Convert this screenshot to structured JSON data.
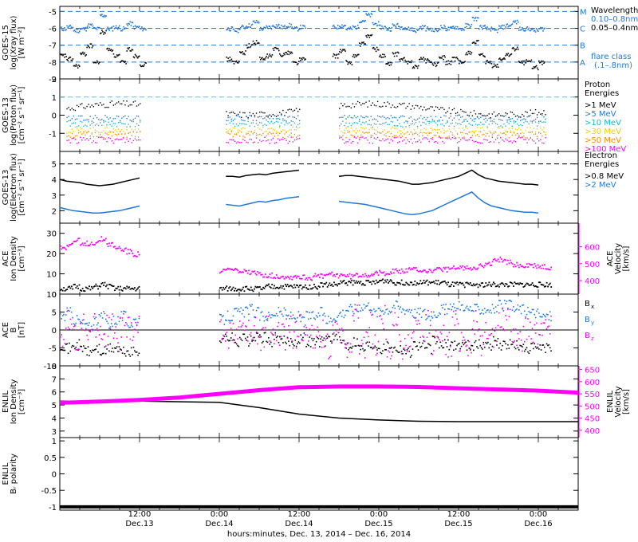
{
  "figure": {
    "xlabel": "hours:minutes, Dec. 13, 2014 – Dec. 16, 2014",
    "x_ticks": [
      {
        "time": "12:00",
        "date": "Dec.13",
        "hour": 12
      },
      {
        "time": "0:00",
        "date": "Dec.14",
        "hour": 24
      },
      {
        "time": "12:00",
        "date": "Dec.14",
        "hour": 36
      },
      {
        "time": "0:00",
        "date": "Dec.15",
        "hour": 48
      },
      {
        "time": "12:00",
        "date": "Dec.15",
        "hour": 60
      },
      {
        "time": "0:00",
        "date": "Dec.16",
        "hour": 72
      }
    ],
    "x_range_hours": [
      0,
      78
    ]
  },
  "chart_data": [
    {
      "type": "line",
      "panel": "xray",
      "ylabel": [
        "GOES-15",
        "log(Xray flux)",
        "[W m⁻²]"
      ],
      "ylim": [
        -9,
        -4.7
      ],
      "yticks": [
        -9,
        -8,
        -7,
        -6,
        -5
      ],
      "legend_title": "Wavelength",
      "flare_class_lines": [
        {
          "letter": "M",
          "value": -5
        },
        {
          "letter": "C",
          "value": -6
        },
        {
          "letter": "B",
          "value": -7
        },
        {
          "letter": "A",
          "value": -8
        }
      ],
      "flare_note": [
        "flare class",
        "(.1–.8nm)"
      ],
      "series": [
        {
          "name": "0.10–0.8nm",
          "color": "#1e78dc",
          "values_hourly": [
            -6.0,
            -5.9,
            -6.1,
            -6.0,
            -5.8,
            -6.0,
            -5.2,
            -6.0,
            -5.9,
            -6.0,
            -5.7,
            -5.9,
            -6.0,
            null,
            null,
            null,
            null,
            null,
            null,
            null,
            null,
            null,
            null,
            null,
            null,
            -6.0,
            -6.1,
            -5.9,
            -5.8,
            -5.6,
            -6.0,
            -5.9,
            -5.8,
            -5.9,
            -5.8,
            -6.0,
            -5.9,
            null,
            null,
            null,
            null,
            -5.9,
            -5.8,
            -6.0,
            -5.9,
            -5.5,
            -5.2,
            -5.7,
            -5.9,
            -6.0,
            -5.8,
            -5.9,
            -6.0,
            -6.1,
            -5.9,
            -6.0,
            -6.1,
            -5.9,
            -6.0,
            -5.9,
            -6.0,
            -5.8,
            -5.4,
            -5.9,
            -6.0,
            -6.1,
            -5.9,
            -5.8,
            -5.6,
            -6.0,
            -6.0,
            -6.1,
            -6.0
          ]
        },
        {
          "name": "0.05–0.4nm",
          "color": "#000000",
          "values_hourly": [
            -7.6,
            -7.8,
            -8.2,
            -7.5,
            -7.0,
            -8.0,
            -6.2,
            -7.2,
            -7.6,
            -8.0,
            -7.2,
            -7.6,
            -8.1,
            null,
            null,
            null,
            null,
            null,
            null,
            null,
            null,
            null,
            null,
            null,
            null,
            -7.8,
            -8.0,
            -7.4,
            -7.0,
            -6.8,
            -7.8,
            -7.6,
            -7.2,
            -7.5,
            -7.4,
            -8.0,
            -7.8,
            null,
            null,
            null,
            null,
            -7.6,
            -7.3,
            -8.0,
            -7.6,
            -6.9,
            -6.4,
            -7.2,
            -7.6,
            -8.1,
            -7.5,
            -7.8,
            -8.0,
            -8.2,
            -7.8,
            -7.9,
            -8.1,
            -7.7,
            -8.0,
            -7.8,
            -8.0,
            -7.4,
            -6.8,
            -7.6,
            -8.0,
            -8.2,
            -7.8,
            -7.5,
            -7.2,
            -8.0,
            -7.9,
            -8.3,
            -8.0
          ]
        }
      ]
    },
    {
      "type": "scatter",
      "panel": "proton",
      "ylabel": [
        "GOES-13",
        "log(Proton flux)",
        "[cm⁻² s⁻¹ sr⁻¹]"
      ],
      "ylim": [
        -2,
        2
      ],
      "yticks": [
        -1,
        0,
        1,
        2
      ],
      "threshold": 1,
      "legend_title": [
        "Proton",
        "Energies"
      ],
      "segments": [
        [
          1,
          12
        ],
        [
          25,
          36
        ],
        [
          42,
          73
        ]
      ],
      "series": [
        {
          "name": ">1 MeV",
          "color": "#000000",
          "base": 0.35
        },
        {
          "name": ">5 MeV",
          "color": "#1e78dc",
          "base": -0.15
        },
        {
          "name": ">10 MeV",
          "color": "#1eb4c8",
          "base": -0.45
        },
        {
          "name": ">30 MeV",
          "color": "#f0d000",
          "base": -0.8
        },
        {
          "name": ">50 MeV",
          "color": "#f08c00",
          "base": -1.05
        },
        {
          "name": ">100 MeV",
          "color": "#ff00ff",
          "base": -1.35
        }
      ]
    },
    {
      "type": "line",
      "panel": "electron",
      "ylabel": [
        "GOES-13",
        "log(Electron flux)",
        "[cm⁻² s⁻¹ sr⁻¹]"
      ],
      "ylim": [
        1.2,
        5.8
      ],
      "yticks": [
        2,
        3,
        4,
        5
      ],
      "threshold": 5,
      "legend_title": [
        "Electron",
        "Energies"
      ],
      "segments": [
        [
          1,
          12
        ],
        [
          25,
          36
        ],
        [
          42,
          73
        ]
      ],
      "series": [
        {
          "name": ">0.8 MeV",
          "color": "#000000",
          "values_hourly": [
            4.0,
            3.9,
            3.85,
            3.8,
            3.7,
            3.65,
            3.6,
            3.65,
            3.7,
            3.8,
            3.9,
            4.0,
            4.1,
            null,
            null,
            null,
            null,
            null,
            null,
            null,
            null,
            null,
            null,
            null,
            null,
            4.2,
            4.2,
            4.15,
            4.25,
            4.3,
            4.35,
            4.3,
            4.4,
            4.45,
            4.5,
            4.55,
            4.6,
            null,
            null,
            null,
            null,
            null,
            4.2,
            4.25,
            4.25,
            4.2,
            4.15,
            4.1,
            4.05,
            4.0,
            3.95,
            3.9,
            3.8,
            3.7,
            3.7,
            3.75,
            3.8,
            3.9,
            4.0,
            4.1,
            4.2,
            4.4,
            4.6,
            4.3,
            4.1,
            4.0,
            3.9,
            3.85,
            3.8,
            3.75,
            3.7,
            3.7,
            3.65
          ]
        },
        {
          "name": ">2 MeV",
          "color": "#1e78dc",
          "values_hourly": [
            2.2,
            2.1,
            2.0,
            1.95,
            1.9,
            1.85,
            1.85,
            1.9,
            1.95,
            2.0,
            2.1,
            2.2,
            2.3,
            null,
            null,
            null,
            null,
            null,
            null,
            null,
            null,
            null,
            null,
            null,
            null,
            2.4,
            2.35,
            2.3,
            2.4,
            2.5,
            2.6,
            2.55,
            2.65,
            2.7,
            2.8,
            2.85,
            2.9,
            null,
            null,
            null,
            null,
            null,
            2.6,
            2.55,
            2.5,
            2.45,
            2.4,
            2.3,
            2.2,
            2.1,
            2.0,
            1.9,
            1.8,
            1.75,
            1.8,
            1.9,
            2.0,
            2.2,
            2.4,
            2.6,
            2.8,
            3.0,
            3.2,
            2.8,
            2.5,
            2.3,
            2.2,
            2.1,
            2.0,
            1.95,
            1.9,
            1.9,
            1.85
          ]
        }
      ]
    },
    {
      "type": "line",
      "panel": "ace-density",
      "ylabel": [
        "ACE",
        "Ion Density",
        "[cm⁻³]"
      ],
      "ylim": [
        0,
        35
      ],
      "yticks": [
        0,
        10,
        20,
        30
      ],
      "ylabel_right": [
        "ACE",
        "Velocity",
        "[km/s]"
      ],
      "ylim_right": [
        320,
        740
      ],
      "yticks_right": [
        400,
        500,
        600
      ],
      "segments": [
        [
          1,
          11
        ],
        [
          24,
          73
        ]
      ],
      "series": [
        {
          "name": "Ion Density",
          "color": "#000000",
          "axis": "left",
          "values_hourly": [
            3,
            3,
            4,
            3,
            3,
            4,
            5,
            4,
            3,
            3,
            3,
            3,
            null,
            null,
            null,
            null,
            null,
            null,
            null,
            null,
            null,
            null,
            null,
            null,
            3,
            3,
            3,
            3,
            3,
            3,
            3,
            4,
            4,
            4,
            4,
            4,
            4,
            4,
            4,
            5,
            5,
            5,
            6,
            6,
            6,
            6,
            6,
            6,
            7,
            7,
            6,
            6,
            6,
            6,
            6,
            6,
            6,
            6,
            5,
            5,
            5,
            5,
            5,
            5,
            5,
            5,
            5,
            5,
            5,
            5,
            5,
            5,
            5,
            5
          ]
        },
        {
          "name": "Velocity",
          "color": "#ff00ff",
          "axis": "right",
          "values_hourly": [
            600,
            620,
            640,
            615,
            625,
            630,
            650,
            620,
            600,
            590,
            575,
            560,
            null,
            null,
            null,
            null,
            null,
            null,
            null,
            null,
            null,
            null,
            null,
            null,
            460,
            470,
            465,
            455,
            450,
            445,
            440,
            435,
            430,
            430,
            425,
            430,
            425,
            420,
            430,
            430,
            440,
            435,
            440,
            430,
            435,
            440,
            440,
            445,
            450,
            455,
            460,
            460,
            465,
            470,
            465,
            460,
            465,
            470,
            470,
            475,
            480,
            480,
            485,
            490,
            500,
            520,
            530,
            510,
            500,
            490,
            495,
            490,
            485,
            480
          ]
        }
      ]
    },
    {
      "type": "line",
      "panel": "ace-b",
      "ylabel": [
        "ACE",
        "B",
        "[nT]"
      ],
      "ylim": [
        -10,
        10
      ],
      "yticks": [
        -10,
        -5,
        0,
        5,
        10
      ],
      "segments": [
        [
          1,
          11
        ],
        [
          24,
          73
        ]
      ],
      "series": [
        {
          "name": "B",
          "sub": "x",
          "color": "#000000",
          "values_hourly": [
            -4,
            -5,
            -4,
            -5,
            -6,
            -5,
            -6,
            -5,
            -5,
            -6,
            -6,
            -6,
            null,
            null,
            null,
            null,
            null,
            null,
            null,
            null,
            null,
            null,
            null,
            null,
            -2,
            -2,
            -3,
            -2,
            -3,
            -2,
            -2,
            -3,
            -2,
            -3,
            -3,
            -3,
            -2,
            -3,
            -3,
            -3,
            -2,
            -2,
            -3,
            -4,
            -3,
            -5,
            -4,
            -4,
            -5,
            -4,
            -5,
            -5,
            -6,
            -4,
            -4,
            -5,
            -3,
            -4,
            -4,
            -4,
            -4,
            -4,
            -4,
            -4,
            -4,
            -3,
            -4,
            -4,
            -4,
            -5,
            -5,
            -5,
            -5,
            -5
          ]
        },
        {
          "name": "B",
          "sub": "y",
          "color": "#1e78dc",
          "values_hourly": [
            4,
            5,
            3,
            2,
            1,
            3,
            4,
            2,
            3,
            4,
            2,
            3,
            null,
            null,
            null,
            null,
            null,
            null,
            null,
            null,
            null,
            null,
            null,
            null,
            3,
            4,
            5,
            5,
            6,
            5,
            4,
            4,
            5,
            5,
            4,
            4,
            3,
            4,
            4,
            5,
            3,
            4,
            5,
            6,
            6,
            7,
            7,
            5,
            6,
            6,
            7,
            6,
            6,
            5,
            5,
            4,
            5,
            6,
            6,
            6,
            7,
            6,
            6,
            6,
            6,
            6,
            7,
            7,
            6,
            6,
            5,
            5,
            4,
            4
          ]
        },
        {
          "name": "B",
          "sub": "z",
          "color": "#ff00ff",
          "values_hourly": [
            -1,
            2,
            -2,
            1,
            -1,
            2,
            -1,
            1,
            -2,
            1,
            0,
            1,
            null,
            null,
            null,
            null,
            null,
            null,
            null,
            null,
            null,
            null,
            null,
            null,
            0,
            -1,
            0,
            1,
            -1,
            0,
            -2,
            1,
            -1,
            -2,
            0,
            -1,
            1,
            -2,
            -3,
            -1,
            -4,
            2,
            -3,
            -4,
            4,
            -5,
            2,
            -4,
            3,
            -5,
            2,
            -4,
            -3,
            1,
            -2,
            2,
            -3,
            1,
            -4,
            2,
            -2,
            -4,
            2,
            -3,
            1,
            -2,
            3,
            2,
            -1,
            -2,
            1,
            0,
            2,
            1
          ]
        }
      ]
    },
    {
      "type": "line",
      "panel": "enlil-density",
      "ylabel": [
        "ENLIL",
        "Ion Density",
        "[cm⁻³]"
      ],
      "ylim": [
        2.5,
        8
      ],
      "yticks": [
        3,
        4,
        5,
        6,
        7,
        8
      ],
      "ylabel_right": [
        "ENLIL",
        "Velocity",
        "[km/s]"
      ],
      "ylim_right": [
        370,
        665
      ],
      "yticks_right": [
        400,
        450,
        500,
        550,
        600,
        650
      ],
      "series": [
        {
          "name": "Ion Density",
          "color": "#000000",
          "axis": "left",
          "x": [
            0,
            12,
            24,
            30,
            36,
            42,
            48,
            54,
            60,
            66,
            72,
            78
          ],
          "values": [
            5.3,
            5.3,
            5.2,
            4.8,
            4.3,
            4.0,
            3.85,
            3.75,
            3.72,
            3.72,
            3.72,
            3.72
          ]
        },
        {
          "name": "Velocity",
          "color": "#ff00ff",
          "axis": "right",
          "x": [
            0,
            6,
            12,
            18,
            24,
            30,
            36,
            42,
            48,
            54,
            60,
            66,
            72,
            78
          ],
          "values": [
            513,
            518,
            525,
            535,
            550,
            565,
            577,
            580,
            580,
            578,
            573,
            568,
            563,
            555
          ]
        }
      ]
    },
    {
      "type": "line",
      "panel": "enlil-polarity",
      "ylabel": [
        "ENLIL",
        "Bᵣ polarity"
      ],
      "ylim": [
        -1.1,
        1.1
      ],
      "yticks": [
        -1.0,
        -0.5,
        0.0,
        0.5,
        1.0
      ],
      "series": [
        {
          "name": "polarity",
          "color": "#000000",
          "x": [
            0,
            78
          ],
          "values": [
            -1,
            -1
          ]
        }
      ]
    }
  ]
}
